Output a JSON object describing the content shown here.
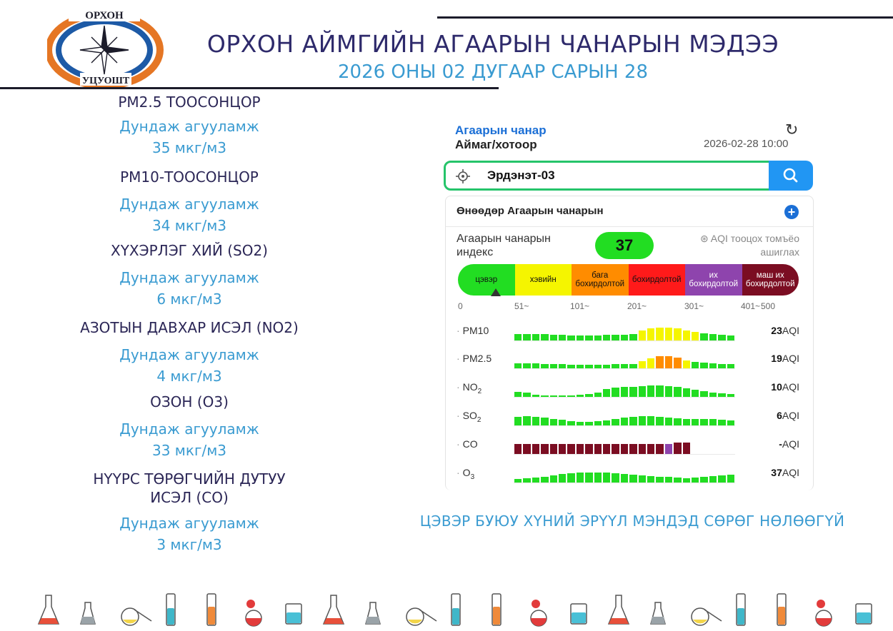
{
  "logo": {
    "top_text": "ОРХОН",
    "bottom_text": "УЦУОШТ"
  },
  "header": {
    "title": "ОРХОН АЙМГИЙН АГААРЫН ЧАНАРЫН МЭДЭЭ",
    "subtitle": "2026 ОНЫ 02 ДУГААР САРЫН 28"
  },
  "pollutants": [
    {
      "name": "PM2.5 ТООСОНЦОР",
      "avg_label": "Дундаж агууламж",
      "value": "35 мкг/м3"
    },
    {
      "name": "PM10-ТООСОНЦОР",
      "avg_label": "Дундаж агууламж",
      "value": "34 мкг/м3"
    },
    {
      "name": "ХҮХЭРЛЭГ ХИЙ (SO2)",
      "avg_label": "Дундаж агууламж",
      "value": "6 мкг/м3"
    },
    {
      "name": "АЗОТЫН ДАВХАР ИСЭЛ (NO2)",
      "avg_label": "Дундаж агууламж",
      "value": "4 мкг/м3"
    },
    {
      "name": "ОЗОН (О3)",
      "avg_label": "Дундаж агууламж",
      "value": "33 мкг/м3"
    },
    {
      "name": "НҮҮРС ТӨРӨГЧИЙН ДУТУУ ИСЭЛ (CO)",
      "avg_label": "Дундаж агууламж",
      "value": "3 мкг/м3"
    }
  ],
  "panel": {
    "title1": "Агаарын чанар",
    "title2": "Аймаг/хотоор",
    "refresh_icon": "refresh-icon",
    "datetime": "2026-02-28 10:00",
    "search": {
      "value": "Эрдэнэт-03",
      "icon_left": "target-icon",
      "icon_right": "search-icon"
    },
    "today_label": "Өнөөдөр Агаарын чанарын",
    "aqi_label": "Агаарын чанарын индекс",
    "aqi_value": "37",
    "aqi_note": "⊛ AQI тооцох томъёо ашиглах",
    "scale": [
      {
        "label": "цэвэр",
        "color": "#22dd22"
      },
      {
        "label": "хэвийн",
        "color": "#f5f500"
      },
      {
        "label": "бага бохирдолтой",
        "color": "#ff8c00"
      },
      {
        "label": "бохирдолтой",
        "color": "#ff1a1a"
      },
      {
        "label": "их бохирдолтой",
        "color": "#8e44ad"
      },
      {
        "label": "маш их бохирдолтой",
        "color": "#7b0d22"
      }
    ],
    "ticks": [
      "0",
      "51~",
      "101~",
      "201~",
      "301~",
      "401~",
      "500"
    ],
    "aqi_unit": "AQI",
    "rows": [
      {
        "name": "PM10",
        "sub": "",
        "aqi": "23",
        "levels": [
          0.45,
          0.45,
          0.45,
          0.45,
          0.4,
          0.4,
          0.35,
          0.35,
          0.35,
          0.35,
          0.4,
          0.4,
          0.4,
          0.45,
          0.7,
          0.85,
          0.9,
          0.9,
          0.85,
          0.7,
          0.6,
          0.5,
          0.45,
          0.4,
          0.35
        ],
        "colors": [
          "g",
          "g",
          "g",
          "g",
          "g",
          "g",
          "g",
          "g",
          "g",
          "g",
          "g",
          "g",
          "g",
          "g",
          "y",
          "y",
          "y",
          "y",
          "y",
          "y",
          "y",
          "g",
          "g",
          "g",
          "g"
        ]
      },
      {
        "name": "PM2.5",
        "sub": "",
        "aqi": "19",
        "levels": [
          0.35,
          0.35,
          0.35,
          0.3,
          0.3,
          0.3,
          0.25,
          0.25,
          0.25,
          0.25,
          0.25,
          0.3,
          0.3,
          0.3,
          0.5,
          0.7,
          0.85,
          0.85,
          0.75,
          0.55,
          0.45,
          0.4,
          0.35,
          0.3,
          0.3
        ],
        "colors": [
          "g",
          "g",
          "g",
          "g",
          "g",
          "g",
          "g",
          "g",
          "g",
          "g",
          "g",
          "g",
          "g",
          "g",
          "y",
          "y",
          "o",
          "o",
          "o",
          "y",
          "g",
          "g",
          "g",
          "g",
          "g"
        ]
      },
      {
        "name": "NO",
        "sub": "2",
        "aqi": "10",
        "levels": [
          0.35,
          0.3,
          0.15,
          0.1,
          0.1,
          0.1,
          0.1,
          0.15,
          0.2,
          0.3,
          0.55,
          0.65,
          0.7,
          0.7,
          0.75,
          0.8,
          0.8,
          0.75,
          0.7,
          0.6,
          0.5,
          0.4,
          0.3,
          0.25,
          0.2
        ],
        "colors": [
          "g",
          "g",
          "g",
          "g",
          "g",
          "g",
          "g",
          "g",
          "g",
          "g",
          "g",
          "g",
          "g",
          "g",
          "g",
          "g",
          "g",
          "g",
          "g",
          "g",
          "g",
          "g",
          "g",
          "g",
          "g"
        ]
      },
      {
        "name": "SO",
        "sub": "2",
        "aqi": "6",
        "levels": [
          0.6,
          0.65,
          0.6,
          0.55,
          0.45,
          0.4,
          0.3,
          0.25,
          0.25,
          0.3,
          0.35,
          0.45,
          0.55,
          0.6,
          0.65,
          0.65,
          0.6,
          0.55,
          0.5,
          0.45,
          0.45,
          0.45,
          0.45,
          0.4,
          0.35
        ],
        "colors": [
          "g",
          "g",
          "g",
          "g",
          "g",
          "g",
          "g",
          "g",
          "g",
          "g",
          "g",
          "g",
          "g",
          "g",
          "g",
          "g",
          "g",
          "g",
          "g",
          "g",
          "g",
          "g",
          "g",
          "g",
          "g"
        ]
      },
      {
        "name": "CO",
        "sub": "",
        "aqi": "-",
        "levels": [
          0.7,
          0.7,
          0.7,
          0.7,
          0.7,
          0.7,
          0.7,
          0.7,
          0.7,
          0.7,
          0.7,
          0.7,
          0.7,
          0.7,
          0.7,
          0.7,
          0.7,
          0.7,
          0.8,
          0.8,
          0,
          0,
          0,
          0,
          0
        ],
        "colors": [
          "m",
          "m",
          "m",
          "m",
          "m",
          "m",
          "m",
          "m",
          "m",
          "m",
          "m",
          "m",
          "m",
          "m",
          "m",
          "m",
          "m",
          "p",
          "m",
          "m",
          "m",
          "m",
          "m",
          "m",
          "m"
        ]
      },
      {
        "name": "O",
        "sub": "3",
        "aqi": "37",
        "levels": [
          0.25,
          0.3,
          0.35,
          0.4,
          0.5,
          0.6,
          0.65,
          0.7,
          0.7,
          0.7,
          0.7,
          0.65,
          0.6,
          0.55,
          0.5,
          0.45,
          0.4,
          0.4,
          0.35,
          0.3,
          0.35,
          0.4,
          0.45,
          0.5,
          0.55
        ],
        "colors": [
          "g",
          "g",
          "g",
          "g",
          "g",
          "g",
          "g",
          "g",
          "g",
          "g",
          "g",
          "g",
          "g",
          "g",
          "g",
          "g",
          "g",
          "g",
          "g",
          "g",
          "g",
          "g",
          "g",
          "g",
          "g"
        ]
      }
    ]
  },
  "footer_note": "ЦЭВЭР БУЮУ ХҮНИЙ ЭРҮҮЛ МЭНДЭД СӨРӨГ НӨЛӨӨГҮЙ",
  "lab_icons": [
    "flask-icon",
    "cylinder-icon",
    "retort-icon",
    "test-tube-icon",
    "test-tube-icon",
    "round-flask-icon",
    "beaker-icon",
    "flask-icon",
    "cylinder-icon",
    "retort-icon",
    "test-tube-icon",
    "test-tube-icon",
    "round-flask-icon",
    "beaker-icon",
    "flask-icon",
    "cylinder-icon",
    "retort-icon",
    "test-tube-icon",
    "test-tube-icon",
    "round-flask-icon",
    "beaker-icon"
  ]
}
